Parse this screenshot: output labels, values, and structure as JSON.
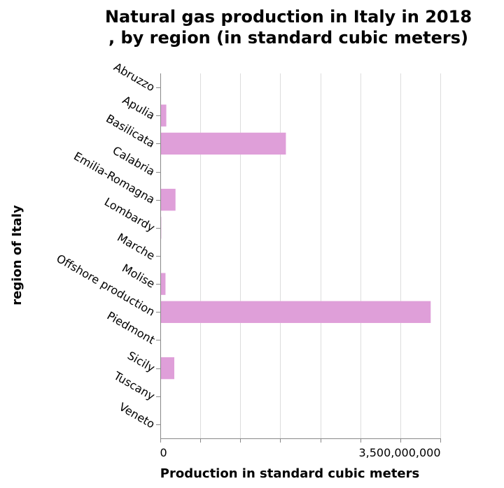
{
  "chart_data": {
    "type": "bar",
    "orientation": "horizontal",
    "title": [
      "Natural gas production in Italy in 2018",
      ", by region (in standard cubic meters)"
    ],
    "xlabel": "Production in standard cubic meters",
    "ylabel": "region of Italy",
    "categories": [
      "Abruzzo",
      "Apulia",
      "Basilicata",
      "Calabria",
      "Emilia-Romagna",
      "Lombardy",
      "Marche",
      "Molise",
      "Offshore production",
      "Piedmont",
      "Sicily",
      "Tuscany",
      "Veneto"
    ],
    "values": [
      7000000,
      75000000,
      1570000000,
      5000000,
      190000000,
      12000000,
      8000000,
      65000000,
      3380000000,
      5000000,
      175000000,
      3000000,
      2000000
    ],
    "xlim": [
      0,
      3500000000
    ],
    "xticks": [
      0,
      500000000,
      1000000000,
      1500000000,
      2000000000,
      2500000000,
      3000000000,
      3500000000
    ],
    "xtick_labels": [
      "0",
      "",
      "",
      "",
      "",
      "",
      "",
      "3,500,000,000"
    ],
    "grid": true,
    "colors": {
      "bar": "#df9fd9",
      "grid": "#dddddd",
      "axis": "#888888"
    }
  }
}
